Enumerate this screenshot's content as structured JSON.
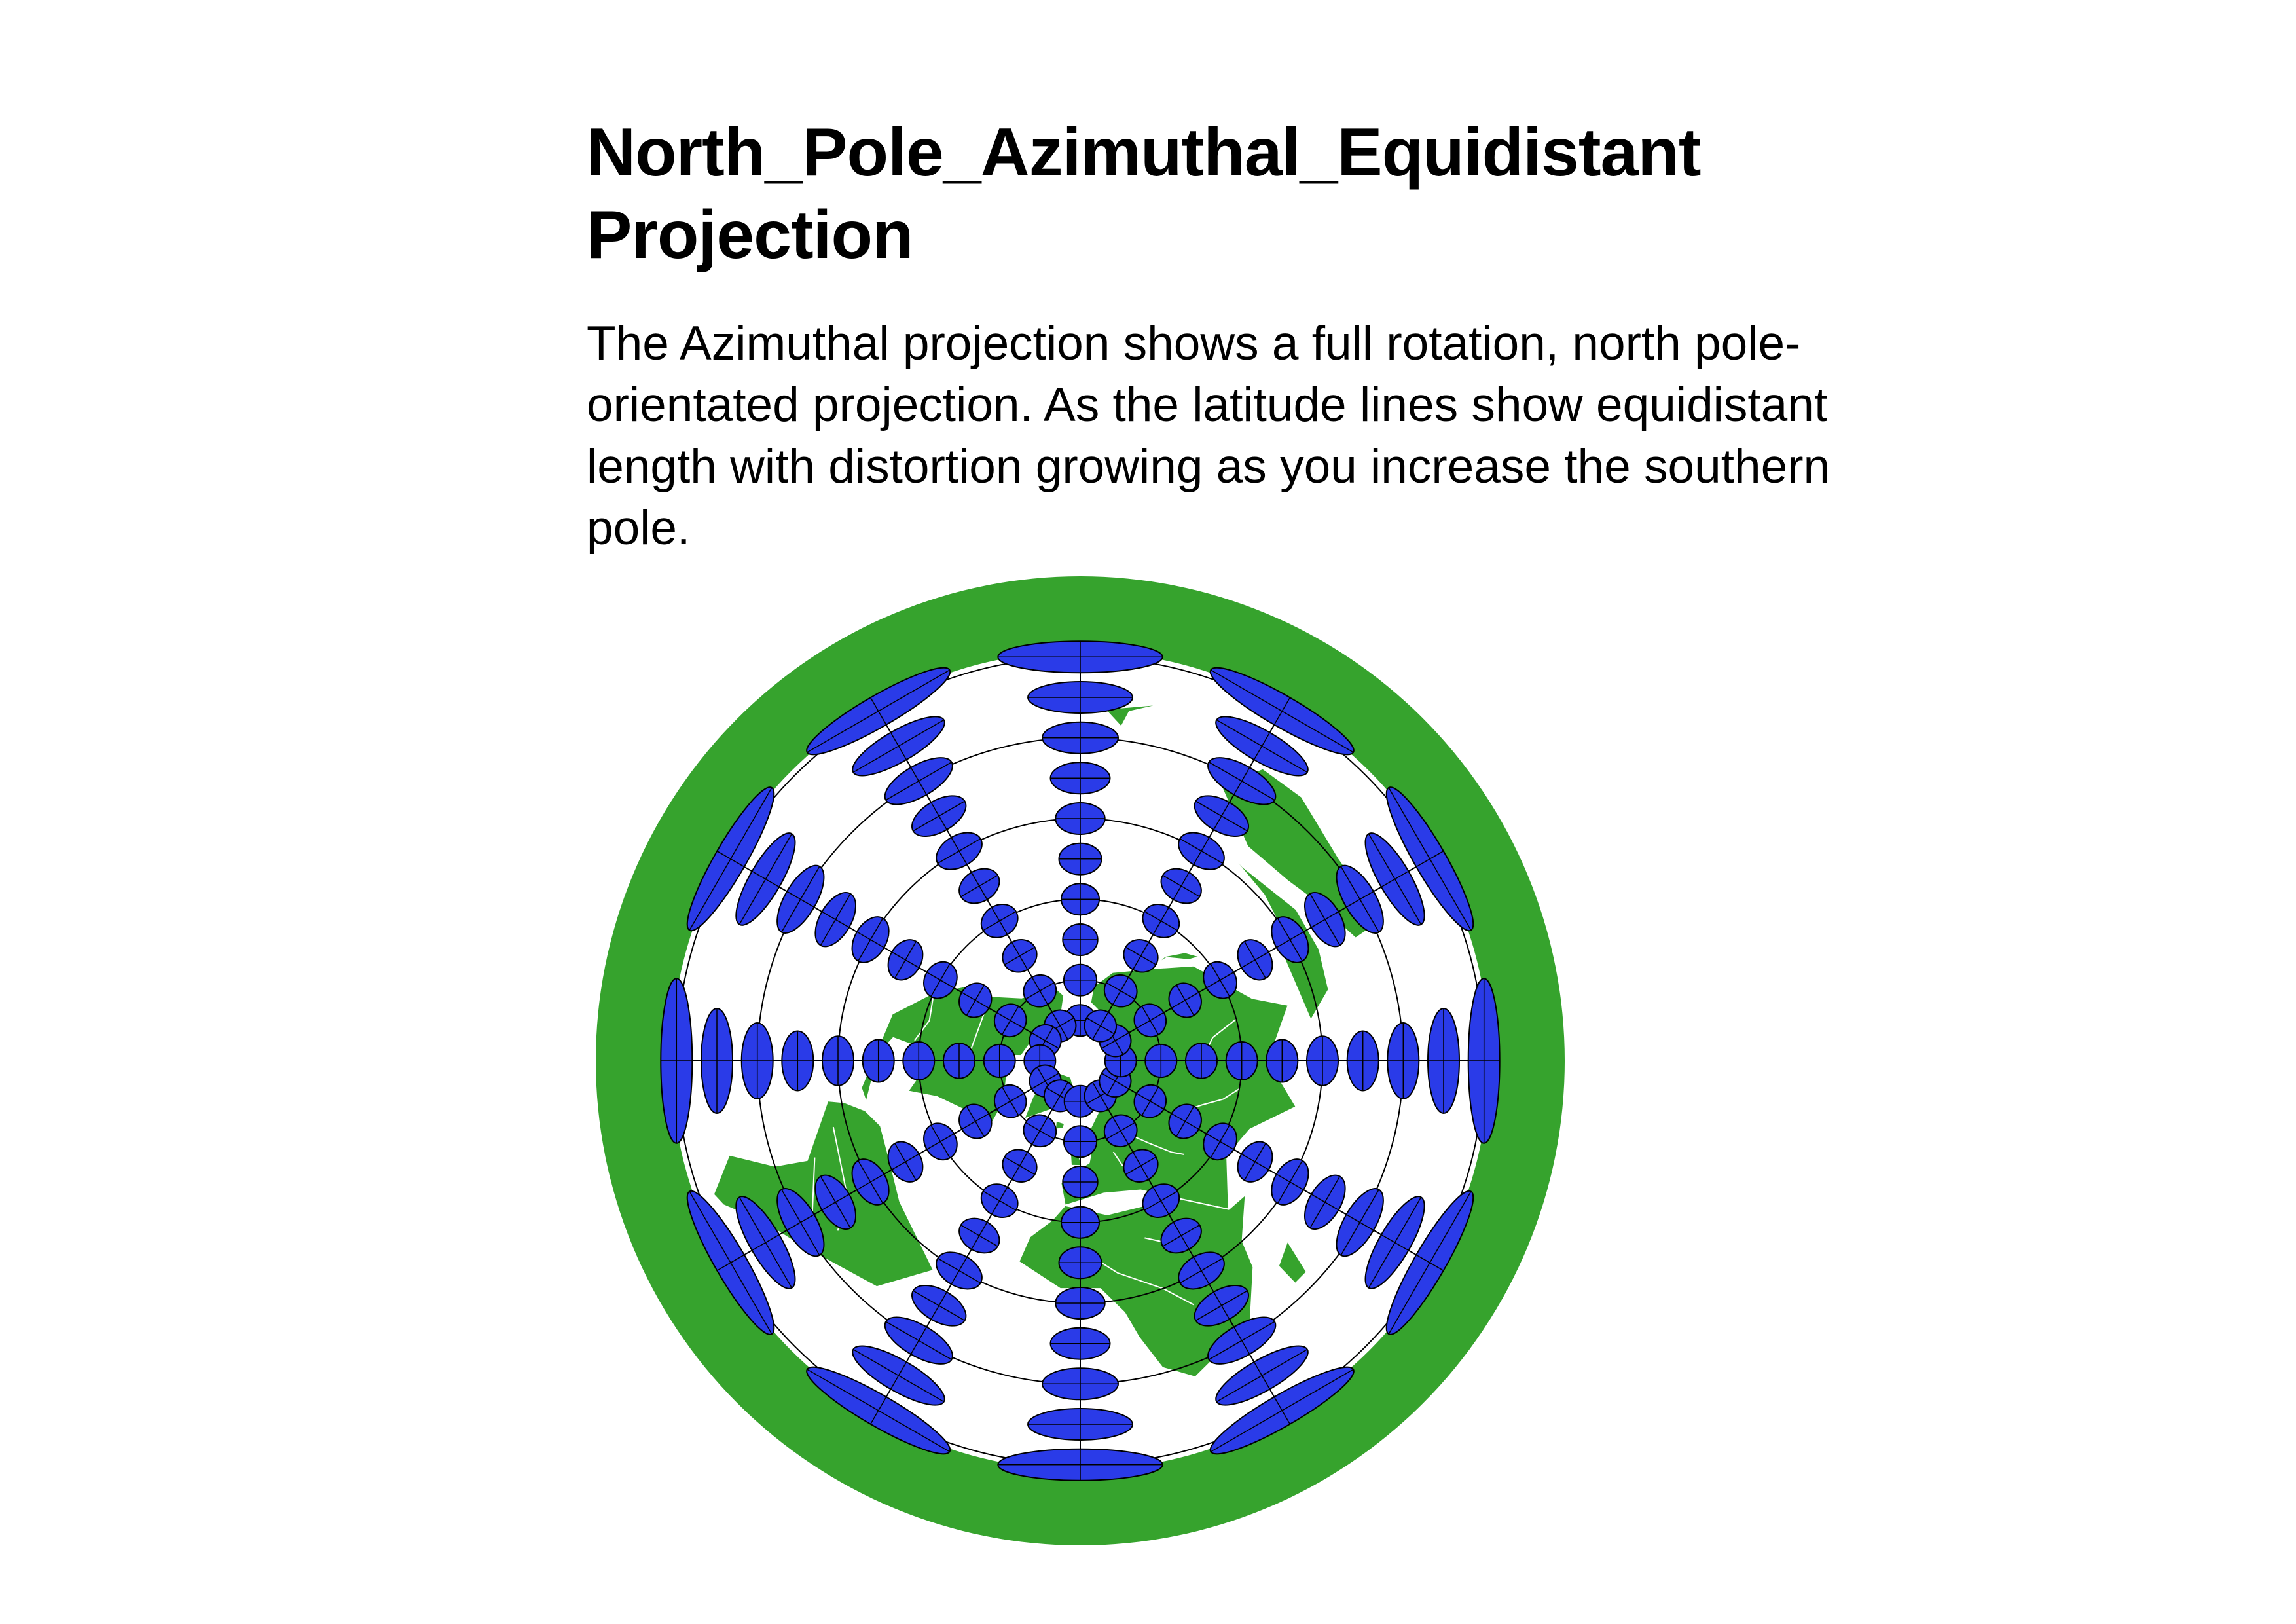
{
  "header": {
    "title": "North_Pole_Azimuthal_Equidistant Projection",
    "description": "The Azimuthal projection shows a full rotation, north pole-orientated projection. As the latitude lines show equidistant length with distortion growing as you increase the southern pole."
  },
  "map": {
    "projection": "azimuthal-equidistant",
    "center": "north-pole",
    "graticule": {
      "meridian_spacing_deg": 30,
      "parallels_deg": [
        60,
        30,
        0,
        -30,
        -60
      ]
    },
    "tissot_indicatrix": {
      "latitudes_deg": [
        75,
        60,
        45,
        30,
        15,
        0,
        -15,
        -30,
        -45,
        -60
      ],
      "longitude_step_deg": 30
    },
    "colors": {
      "land": "#36a32d",
      "ocean": "#ffffff",
      "country_borders": "#ffffff",
      "graticule": "#000000",
      "indicatrix_fill": "#2a3be8",
      "indicatrix_stroke": "#000000"
    }
  }
}
